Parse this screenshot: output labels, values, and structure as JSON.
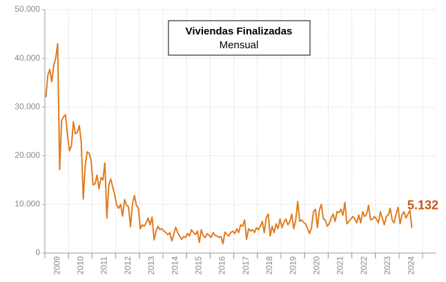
{
  "chart_data": {
    "type": "line",
    "title": "Viviendas Finalizadas",
    "subtitle": "Mensual",
    "annotation": "5.132",
    "categories": [
      null,
      null,
      null,
      null,
      null,
      null,
      "2009",
      null,
      null,
      null,
      null,
      null,
      null,
      null,
      null,
      null,
      null,
      null,
      "2010",
      null,
      null,
      null,
      null,
      null,
      null,
      null,
      null,
      null,
      null,
      null,
      "2011",
      null,
      null,
      null,
      null,
      null,
      null,
      null,
      null,
      null,
      null,
      null,
      "2012",
      null,
      null,
      null,
      null,
      null,
      null,
      null,
      null,
      null,
      null,
      null,
      "2013",
      null,
      null,
      null,
      null,
      null,
      null,
      null,
      null,
      null,
      null,
      null,
      "2014",
      null,
      null,
      null,
      null,
      null,
      null,
      null,
      null,
      null,
      null,
      null,
      "2015",
      null,
      null,
      null,
      null,
      null,
      null,
      null,
      null,
      null,
      null,
      null,
      "2016",
      null,
      null,
      null,
      null,
      null,
      null,
      null,
      null,
      null,
      null,
      null,
      "2017",
      null,
      null,
      null,
      null,
      null,
      null,
      null,
      null,
      null,
      null,
      null,
      "2018",
      null,
      null,
      null,
      null,
      null,
      null,
      null,
      null,
      null,
      null,
      null,
      "2019",
      null,
      null,
      null,
      null,
      null,
      null,
      null,
      null,
      null,
      null,
      null,
      "2020",
      null,
      null,
      null,
      null,
      null,
      null,
      null,
      null,
      null,
      null,
      null,
      "2021",
      null,
      null,
      null,
      null,
      null,
      null,
      null,
      null,
      null,
      null,
      null,
      "2022",
      null,
      null,
      null,
      null,
      null,
      null,
      null,
      null,
      null,
      null,
      null,
      "2023",
      null,
      null,
      null,
      null,
      null,
      null,
      null,
      null,
      null,
      null,
      null,
      "2024"
    ],
    "series": [
      {
        "color": "#e07b1f",
        "values": [
          32000,
          36500,
          37700,
          35200,
          38500,
          40000,
          43000,
          17100,
          27200,
          28000,
          28400,
          24200,
          21000,
          22000,
          27000,
          24500,
          24800,
          26200,
          22800,
          11100,
          18000,
          20800,
          20500,
          19000,
          14000,
          14200,
          16000,
          13200,
          15500,
          15000,
          18500,
          7200,
          14000,
          15200,
          13500,
          12000,
          9800,
          9200,
          10000,
          7600,
          11000,
          9800,
          9500,
          5400,
          10000,
          11800,
          9800,
          9200,
          5000,
          5800,
          5500,
          6200,
          7200,
          5800,
          7400,
          2700,
          4500,
          5500,
          4800,
          5000,
          4500,
          4200,
          3800,
          4200,
          2500,
          3800,
          5300,
          4200,
          3500,
          2800,
          3400,
          3200,
          4000,
          3500,
          4800,
          4200,
          3800,
          4500,
          2200,
          4800,
          3500,
          3200,
          4000,
          3600,
          3200,
          4200,
          3600,
          3500,
          3200,
          3400,
          1900,
          4300,
          3800,
          3500,
          4200,
          4500,
          4000,
          5000,
          4200,
          5800,
          5500,
          6800,
          2800,
          5000,
          4500,
          4800,
          4200,
          5200,
          4800,
          5500,
          6500,
          4200,
          7300,
          8000,
          3500,
          5500,
          4200,
          6000,
          5000,
          7000,
          5200,
          6300,
          7000,
          5800,
          6500,
          8000,
          5000,
          6800,
          10600,
          6500,
          6800,
          6300,
          6000,
          5000,
          4000,
          5200,
          8500,
          9000,
          5200,
          8800,
          10000,
          7000,
          6800,
          5500,
          6000,
          7200,
          8000,
          6500,
          8500,
          8300,
          9000,
          7800,
          10400,
          6000,
          6500,
          7000,
          7500,
          7000,
          6200,
          7800,
          6200,
          8500,
          7500,
          8000,
          9800,
          6800,
          7000,
          7500,
          7000,
          6200,
          8500,
          7200,
          5800,
          7500,
          7800,
          9200,
          6800,
          6200,
          8000,
          9400,
          6000,
          7800,
          8500,
          7200,
          8000,
          8800,
          5132
        ]
      }
    ],
    "ylim": [
      0,
      50000
    ],
    "yticks": [
      0,
      {
        "value": 10000,
        "label": "10.000"
      },
      {
        "value": 20000,
        "label": "20.000"
      },
      {
        "value": 30000,
        "label": "30.000"
      },
      {
        "value": 40000,
        "label": "40.000"
      },
      {
        "value": 50000,
        "label": "50.000"
      }
    ],
    "grid": true
  }
}
